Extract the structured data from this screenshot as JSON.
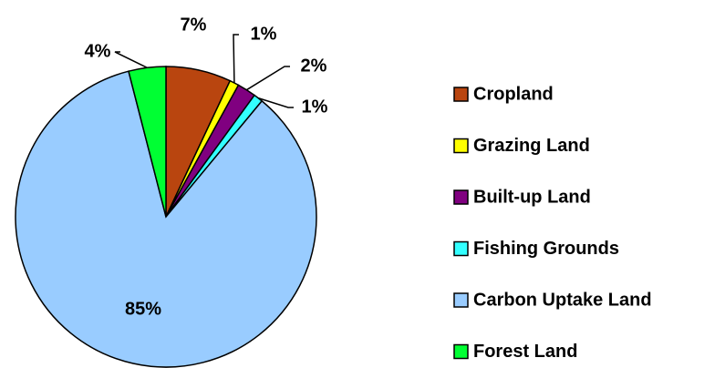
{
  "chart_data": {
    "type": "pie",
    "categories": [
      "Cropland",
      "Grazing Land",
      "Built-up Land",
      "Fishing Grounds",
      "Carbon Uptake Land",
      "Forest Land"
    ],
    "values": [
      7,
      1,
      2,
      1,
      85,
      4
    ],
    "value_labels": [
      "7%",
      "1%",
      "2%",
      "1%",
      "85%",
      "4%"
    ],
    "colors": [
      "#b9450f",
      "#ffff00",
      "#800080",
      "#33ffff",
      "#99ccff",
      "#00ff33"
    ]
  }
}
